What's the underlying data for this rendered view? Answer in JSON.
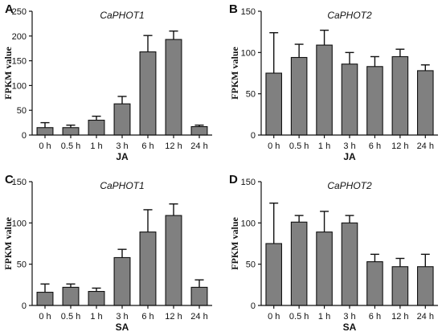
{
  "chart_data": [
    {
      "type": "bar",
      "panel": "A",
      "title": "CaPHOT1",
      "xlabel": "JA",
      "ylabel": "FPKM value",
      "categories": [
        "0 h",
        "0.5 h",
        "1 h",
        "3 h",
        "6 h",
        "12 h",
        "24 h"
      ],
      "values": [
        15,
        15,
        30,
        63,
        168,
        193,
        17
      ],
      "errors": [
        10,
        5,
        8,
        15,
        33,
        17,
        3
      ],
      "ylim": [
        0,
        250
      ],
      "yticks": [
        0,
        50,
        100,
        150,
        200,
        250
      ]
    },
    {
      "type": "bar",
      "panel": "B",
      "title": "CaPHOT2",
      "xlabel": "JA",
      "ylabel": "FPKM value",
      "categories": [
        "0 h",
        "0.5 h",
        "1 h",
        "3 h",
        "6 h",
        "12 h",
        "24 h"
      ],
      "values": [
        75,
        94,
        109,
        86,
        83,
        95,
        78
      ],
      "errors": [
        49,
        16,
        18,
        14,
        12,
        9,
        7
      ],
      "ylim": [
        0,
        150
      ],
      "yticks": [
        0,
        50,
        100,
        150
      ]
    },
    {
      "type": "bar",
      "panel": "C",
      "title": "CaPHOT1",
      "xlabel": "SA",
      "ylabel": "FPKM value",
      "categories": [
        "0 h",
        "0.5 h",
        "1 h",
        "3 h",
        "6 h",
        "12 h",
        "24 h"
      ],
      "values": [
        16,
        22,
        17,
        58,
        89,
        109,
        22
      ],
      "errors": [
        10,
        4,
        4,
        10,
        27,
        14,
        9
      ],
      "ylim": [
        0,
        150
      ],
      "yticks": [
        0,
        50,
        100,
        150
      ]
    },
    {
      "type": "bar",
      "panel": "D",
      "title": "CaPHOT2",
      "xlabel": "SA",
      "ylabel": "FPKM value",
      "categories": [
        "0 h",
        "0.5 h",
        "1 h",
        "3 h",
        "6 h",
        "12 h",
        "24 h"
      ],
      "values": [
        75,
        101,
        89,
        100,
        53,
        47,
        47
      ],
      "errors": [
        49,
        8,
        25,
        9,
        9,
        10,
        15
      ],
      "ylim": [
        0,
        150
      ],
      "yticks": [
        0,
        50,
        100,
        150
      ]
    }
  ]
}
